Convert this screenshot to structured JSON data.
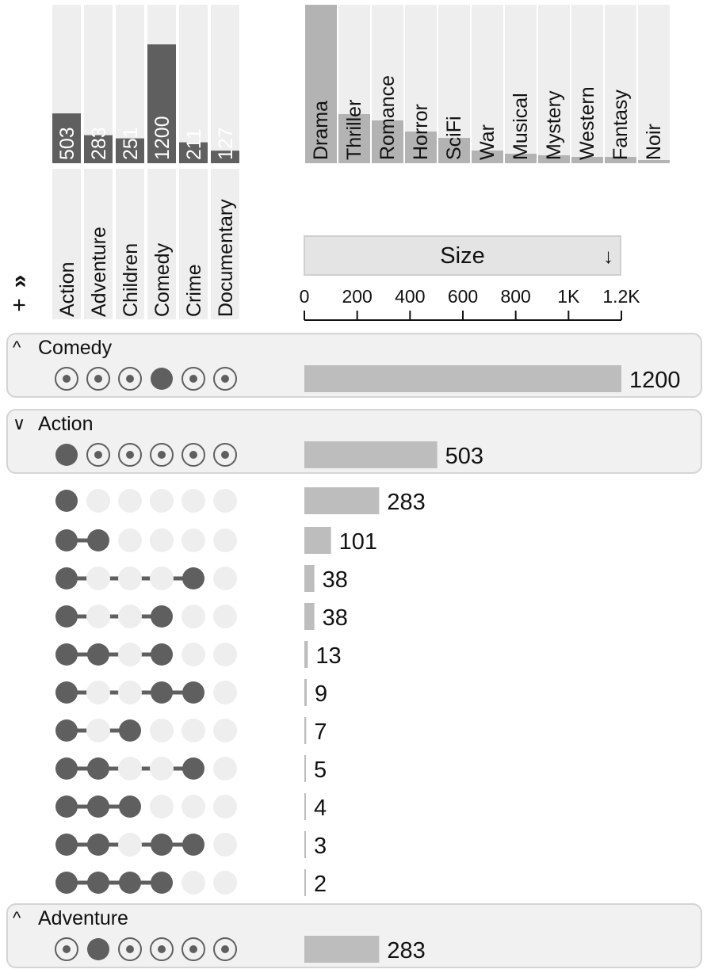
{
  "colors": {
    "dark": "#5f5f5f",
    "bar": "#bdbdbd",
    "secondary_bar": "#b3b3b3",
    "track": "#eeeeee",
    "panel": "#f1f1f1",
    "panel_border": "#d4d4d4"
  },
  "controls": {
    "add_icon": "plus-icon",
    "expand_icon": "double-chevron-icon"
  },
  "sort": {
    "label": "Size",
    "direction_icon": "arrow-down-icon"
  },
  "chart_data": {
    "type": "bar",
    "description_kind": "upset-plot",
    "sets": {
      "categories": [
        "Action",
        "Adventure",
        "Children",
        "Comedy",
        "Crime",
        "Documentary"
      ],
      "values": [
        503,
        283,
        251,
        1200,
        211,
        127
      ],
      "labels": [
        "503",
        "283",
        "251",
        "1200",
        "211",
        "127"
      ]
    },
    "other_attributes": {
      "categories": [
        "Drama",
        "Thriller",
        "Romance",
        "Horror",
        "SciFi",
        "War",
        "Musical",
        "Mystery",
        "Western",
        "Fantasy",
        "Noir"
      ],
      "values": [
        1.0,
        0.31,
        0.27,
        0.2,
        0.16,
        0.08,
        0.06,
        0.05,
        0.04,
        0.04,
        0.02
      ]
    },
    "size_axis": {
      "ticks": [
        "0",
        "200",
        "400",
        "600",
        "800",
        "1K",
        "1.2K"
      ],
      "tick_values": [
        0,
        200,
        400,
        600,
        800,
        1000,
        1200
      ],
      "xlim": [
        0,
        1200
      ]
    },
    "groups": [
      {
        "name": "Comedy",
        "chevron": "^",
        "membership": [
          0,
          0,
          0,
          1,
          0,
          0
        ],
        "size": 1200,
        "label": "1200"
      },
      {
        "name": "Action",
        "chevron": "v",
        "membership": [
          1,
          0,
          0,
          0,
          0,
          0
        ],
        "size": 503,
        "label": "503",
        "rows": [
          {
            "membership": [
              1,
              0,
              0,
              0,
              0,
              0
            ],
            "size": 283,
            "label": "283"
          },
          {
            "membership": [
              1,
              1,
              0,
              0,
              0,
              0
            ],
            "size": 101,
            "label": "101"
          },
          {
            "membership": [
              1,
              0,
              0,
              0,
              1,
              0
            ],
            "size": 38,
            "label": "38"
          },
          {
            "membership": [
              1,
              0,
              0,
              1,
              0,
              0
            ],
            "size": 38,
            "label": "38"
          },
          {
            "membership": [
              1,
              1,
              0,
              1,
              0,
              0
            ],
            "size": 13,
            "label": "13"
          },
          {
            "membership": [
              1,
              0,
              0,
              1,
              1,
              0
            ],
            "size": 9,
            "label": "9"
          },
          {
            "membership": [
              1,
              0,
              1,
              0,
              0,
              0
            ],
            "size": 7,
            "label": "7"
          },
          {
            "membership": [
              1,
              1,
              0,
              0,
              1,
              0
            ],
            "size": 5,
            "label": "5"
          },
          {
            "membership": [
              1,
              1,
              1,
              0,
              0,
              0
            ],
            "size": 4,
            "label": "4"
          },
          {
            "membership": [
              1,
              1,
              0,
              1,
              1,
              0
            ],
            "size": 3,
            "label": "3"
          },
          {
            "membership": [
              1,
              1,
              1,
              1,
              0,
              0
            ],
            "size": 2,
            "label": "2"
          }
        ]
      },
      {
        "name": "Adventure",
        "chevron": "^",
        "membership": [
          0,
          1,
          0,
          0,
          0,
          0
        ],
        "size": 283,
        "label": "283"
      }
    ]
  }
}
